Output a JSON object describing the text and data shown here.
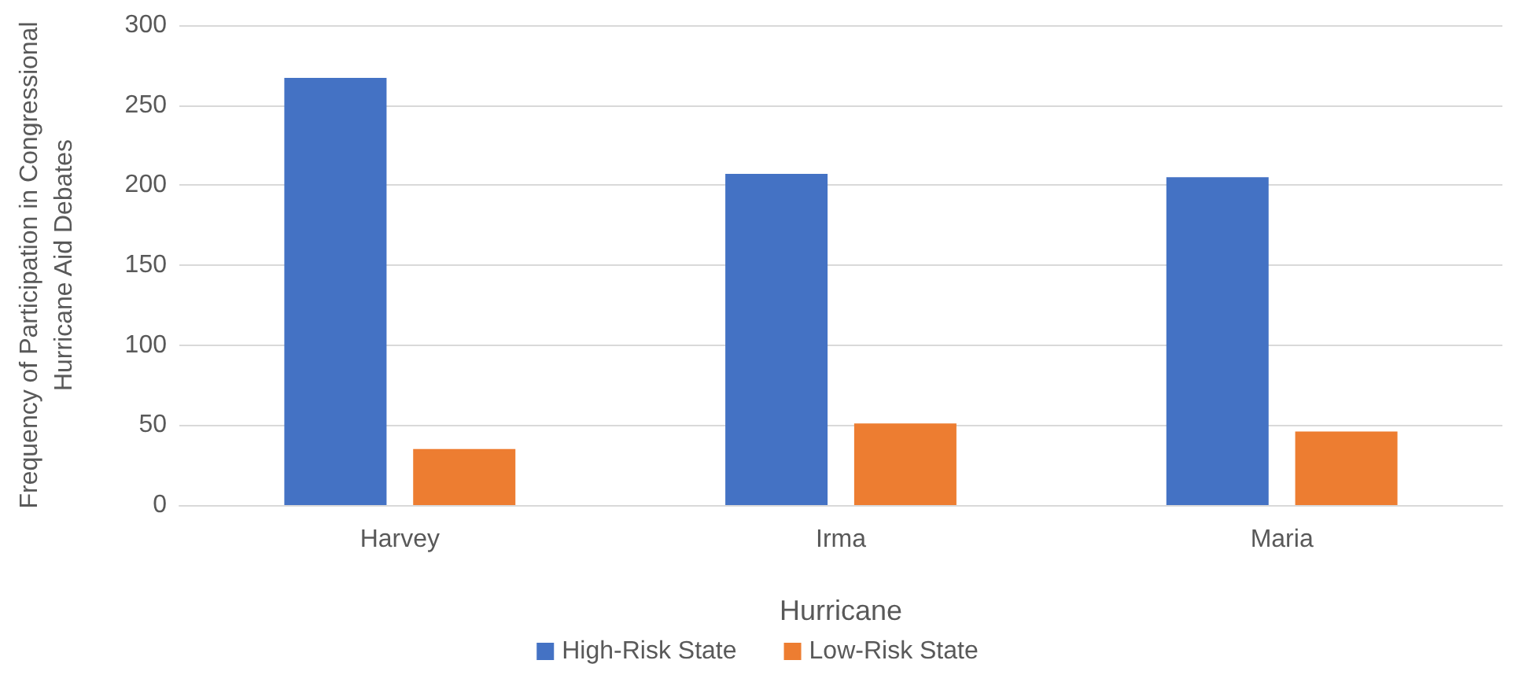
{
  "chart_data": {
    "type": "bar",
    "xlabel": "Hurricane",
    "ylabel": "Frequency of Participation in Congressional Hurricane Aid Debates",
    "categories": [
      "Harvey",
      "Irma",
      "Maria"
    ],
    "series": [
      {
        "name": "High-Risk State",
        "color": "#4472c4",
        "values": [
          267,
          207,
          205
        ]
      },
      {
        "name": "Low-Risk State",
        "color": "#ed7d31",
        "values": [
          35,
          51,
          46
        ]
      }
    ],
    "ylim": [
      0,
      300
    ],
    "yticks": [
      0,
      50,
      100,
      150,
      200,
      250,
      300
    ],
    "grid": "y",
    "legend": "bottom"
  }
}
